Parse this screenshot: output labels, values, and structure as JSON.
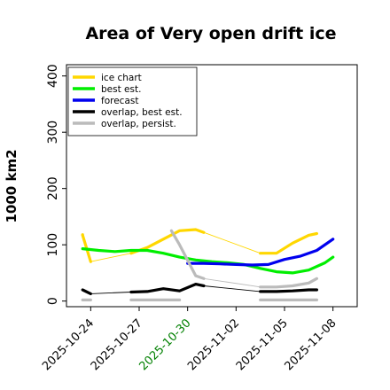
{
  "chart_data": {
    "type": "line",
    "title": "Area of Very open drift ice",
    "xlabel": "",
    "ylabel": "1000 km2",
    "ylim": [
      -10,
      420
    ],
    "xlim": [
      "2025-10-22T12",
      "2025-11-09T12"
    ],
    "yticks": [
      0,
      100,
      200,
      300,
      400
    ],
    "xticks": [
      {
        "label": "2025-10-24",
        "date": "2025-10-24",
        "color": "#000000"
      },
      {
        "label": "2025-10-27",
        "date": "2025-10-27",
        "color": "#000000"
      },
      {
        "label": "2025-10-30",
        "date": "2025-10-30",
        "color": "#008000"
      },
      {
        "label": "2025-11-02",
        "date": "2025-11-02",
        "color": "#000000"
      },
      {
        "label": "2025-11-05",
        "date": "2025-11-05",
        "color": "#000000"
      },
      {
        "label": "2025-11-08",
        "date": "2025-11-08",
        "color": "#000000"
      }
    ],
    "grid": false,
    "legend": "top-left",
    "series": [
      {
        "name": "ice chart",
        "color": "#FFD700",
        "segments": [
          {
            "style": "thick",
            "x": [
              "2025-10-23T12",
              "2025-10-23T12"
            ],
            "y": [
              118,
              118
            ]
          },
          {
            "style": "thick",
            "x": [
              "2025-10-23T12",
              "2025-10-24T00"
            ],
            "y": [
              117,
              70
            ]
          },
          {
            "style": "thin",
            "x": [
              "2025-10-24T00",
              "2025-10-26T12"
            ],
            "y": [
              70,
              85
            ]
          },
          {
            "style": "thick",
            "x": [
              "2025-10-26T12",
              "2025-10-27T12",
              "2025-10-28T12",
              "2025-10-29T12",
              "2025-10-30T12",
              "2025-10-31T00"
            ],
            "y": [
              85,
              95,
              110,
              125,
              127,
              122
            ]
          },
          {
            "style": "thin",
            "x": [
              "2025-10-31T00",
              "2025-11-03T12"
            ],
            "y": [
              122,
              85
            ]
          },
          {
            "style": "thick",
            "x": [
              "2025-11-03T12",
              "2025-11-04T12",
              "2025-11-05T12",
              "2025-11-06T12",
              "2025-11-07T00"
            ],
            "y": [
              85,
              85,
              103,
              117,
              120
            ]
          }
        ]
      },
      {
        "name": "best est.",
        "color": "#00EE00",
        "segments": [
          {
            "style": "thick",
            "x": [
              "2025-10-23T12",
              "2025-10-24T12",
              "2025-10-25T12",
              "2025-10-26T12",
              "2025-10-27T12",
              "2025-10-28T12",
              "2025-10-29T12",
              "2025-10-30T12",
              "2025-10-31T12",
              "2025-11-01T12",
              "2025-11-02T12",
              "2025-11-03T12",
              "2025-11-04T12",
              "2025-11-05T12",
              "2025-11-06T12",
              "2025-11-07T12",
              "2025-11-08T00"
            ],
            "y": [
              93,
              90,
              88,
              90,
              90,
              85,
              78,
              73,
              70,
              68,
              65,
              58,
              52,
              50,
              55,
              68,
              78
            ]
          }
        ]
      },
      {
        "name": "forecast",
        "color": "#0000EE",
        "segments": [
          {
            "style": "thick",
            "x": [
              "2025-10-30T00",
              "2025-10-31T00",
              "2025-11-01T00",
              "2025-11-02T00",
              "2025-11-03T00",
              "2025-11-04T00",
              "2025-11-05T00",
              "2025-11-06T00",
              "2025-11-07T00",
              "2025-11-08T00"
            ],
            "y": [
              67,
              67,
              66,
              65,
              64,
              65,
              74,
              80,
              90,
              110
            ]
          }
        ]
      },
      {
        "name": "overlap, best est.",
        "color": "#000000",
        "segments": [
          {
            "style": "thick",
            "x": [
              "2025-10-23T12",
              "2025-10-24T00"
            ],
            "y": [
              20,
              13
            ]
          },
          {
            "style": "thin",
            "x": [
              "2025-10-24T00",
              "2025-10-26T12"
            ],
            "y": [
              13,
              16
            ]
          },
          {
            "style": "thick",
            "x": [
              "2025-10-26T12",
              "2025-10-27T12",
              "2025-10-28T12",
              "2025-10-29T12",
              "2025-10-30T12",
              "2025-10-31T00"
            ],
            "y": [
              16,
              17,
              22,
              18,
              30,
              27
            ]
          },
          {
            "style": "thin",
            "x": [
              "2025-10-31T00",
              "2025-11-03T12"
            ],
            "y": [
              27,
              17
            ]
          },
          {
            "style": "thick",
            "x": [
              "2025-11-03T12",
              "2025-11-04T12",
              "2025-11-05T12",
              "2025-11-06T12",
              "2025-11-07T00"
            ],
            "y": [
              17,
              17,
              18,
              20,
              20
            ]
          }
        ]
      },
      {
        "name": "overlap, persist.",
        "color": "#BBBBBB",
        "segments": [
          {
            "style": "thick",
            "x": [
              "2025-10-23T12",
              "2025-10-24T00"
            ],
            "y": [
              2,
              2
            ]
          },
          {
            "style": "thick",
            "x": [
              "2025-10-26T12",
              "2025-10-29T12"
            ],
            "y": [
              2,
              2
            ]
          },
          {
            "style": "thick",
            "x": [
              "2025-10-29T00",
              "2025-10-29T12",
              "2025-10-30T12",
              "2025-10-31T00"
            ],
            "y": [
              125,
              100,
              45,
              40
            ]
          },
          {
            "style": "thin",
            "x": [
              "2025-10-31T00",
              "2025-11-03T12"
            ],
            "y": [
              40,
              25
            ]
          },
          {
            "style": "thick",
            "x": [
              "2025-11-03T12",
              "2025-11-04T12",
              "2025-11-05T12",
              "2025-11-06T12",
              "2025-11-07T00"
            ],
            "y": [
              25,
              25,
              27,
              32,
              40
            ]
          },
          {
            "style": "thick",
            "x": [
              "2025-11-03T12",
              "2025-11-07T00"
            ],
            "y": [
              2,
              2
            ]
          }
        ]
      }
    ]
  }
}
